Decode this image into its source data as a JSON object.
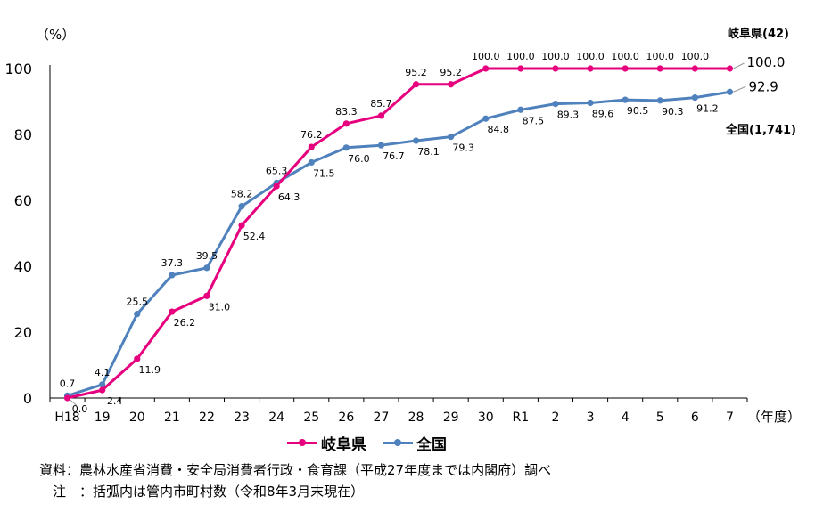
{
  "chart_data": {
    "type": "line",
    "y_unit_label": "（%）",
    "x_unit_label": "（年度）",
    "categories": [
      "H18",
      "19",
      "20",
      "21",
      "22",
      "23",
      "24",
      "25",
      "26",
      "27",
      "28",
      "29",
      "30",
      "R1",
      "2",
      "3",
      "4",
      "5",
      "6",
      "7"
    ],
    "ylim": [
      0,
      100
    ],
    "yticks": [
      0,
      20,
      40,
      60,
      80,
      100
    ],
    "grid": false,
    "legend_position": "bottom",
    "series": [
      {
        "name": "岐阜県",
        "color": "#e6007e",
        "values": [
          0.0,
          2.4,
          11.9,
          26.2,
          31.0,
          52.4,
          64.3,
          76.2,
          83.3,
          85.7,
          95.2,
          95.2,
          100.0,
          100.0,
          100.0,
          100.0,
          100.0,
          100.0,
          100.0,
          100.0
        ],
        "labels": [
          "0.0",
          "2.4",
          "11.9",
          "26.2",
          "31.0",
          "52.4",
          "64.3",
          "76.2",
          "83.3",
          "85.7",
          "95.2",
          "95.2",
          "100.0",
          "100.0",
          "100.0",
          "100.0",
          "100.0",
          "100.0",
          "100.0",
          "100.0"
        ],
        "end_label": "岐阜県(42)"
      },
      {
        "name": "全国",
        "color": "#4f81bd",
        "values": [
          0.7,
          4.1,
          25.5,
          37.3,
          39.5,
          58.2,
          65.3,
          71.5,
          76.0,
          76.7,
          78.1,
          79.3,
          84.8,
          87.5,
          89.3,
          89.6,
          90.5,
          90.3,
          91.2,
          92.9
        ],
        "labels": [
          "0.7",
          "4.1",
          "25.5",
          "37.3",
          "39.5",
          "58.2",
          "65.3",
          "71.5",
          "76.0",
          "76.7",
          "78.1",
          "79.3",
          "84.8",
          "87.5",
          "89.3",
          "89.6",
          "90.5",
          "90.3",
          "91.2",
          "92.9"
        ],
        "end_label": "全国(1,741)"
      }
    ]
  },
  "notes": {
    "source": "資料：農林水産省消費・安全局消費者行政・食育課（平成27年度までは内閣府）調べ",
    "note": "　注　：括弧内は管内市町村数（令和8年3月末現在）"
  }
}
